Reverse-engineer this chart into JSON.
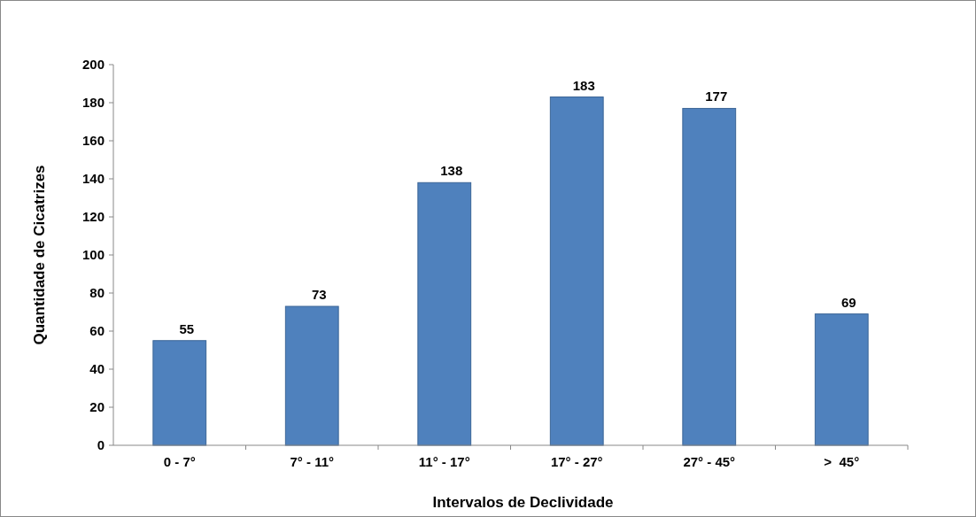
{
  "chart_data": {
    "type": "bar",
    "xlabel": "Intervalos de Declividade",
    "ylabel": "Quantidade de Cicatrizes",
    "categories": [
      "0 - 7°",
      "7° - 11°",
      "11° - 17°",
      "17° - 27°",
      "27° - 45°",
      ">  45°"
    ],
    "values": [
      55,
      73,
      138,
      183,
      177,
      69
    ],
    "color": "#4f81bd",
    "ylim": [
      0,
      200
    ],
    "yticks": [
      0,
      20,
      40,
      60,
      80,
      100,
      120,
      140,
      160,
      180,
      200
    ],
    "data_labels": true,
    "grid": false
  }
}
